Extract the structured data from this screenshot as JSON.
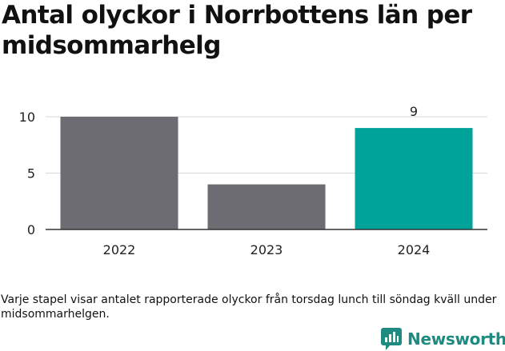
{
  "title": "Antal olyckor i Norrbottens län per midsommarhelg",
  "note": "Varje stapel visar antalet rapporterade olyckor från torsdag lunch till söndag kväll under midsommarhelgen.",
  "brand": {
    "name": "Newsworthy",
    "icon": "bar-chart-logo-icon",
    "color": "#1f8a80"
  },
  "chart_data": {
    "type": "bar",
    "categories": [
      "2022",
      "2023",
      "2024"
    ],
    "values": [
      10,
      4,
      9
    ],
    "colors": [
      "#6d6c72",
      "#6d6c72",
      "#00a39a"
    ],
    "data_labels": [
      "",
      "",
      "9"
    ],
    "yticks": [
      0,
      5,
      10
    ],
    "ylim": [
      0,
      10
    ],
    "grid": true
  }
}
